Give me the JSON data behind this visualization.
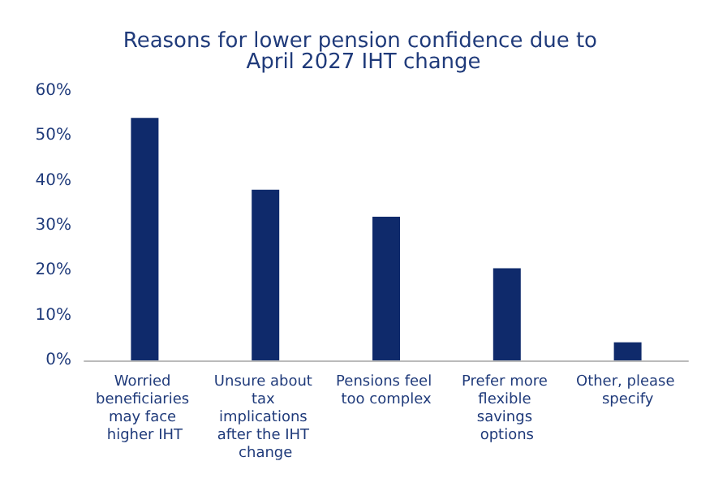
{
  "chart_data": {
    "type": "bar",
    "title": "Reasons for lower pension confidence due to April 2027 IHT change",
    "categories": [
      "Worried beneficiaries may face higher IHT",
      "Unsure about tax implications after the IHT change",
      "Pensions feel too complex",
      "Prefer more flexible savings options",
      "Other, please specify"
    ],
    "values": [
      54,
      38,
      32,
      20.5,
      4
    ],
    "color": "#0f2a6b",
    "ylim": [
      0,
      60
    ],
    "yticks": [
      {
        "value": 0,
        "label": "0%"
      },
      {
        "value": 10,
        "label": "10%"
      },
      {
        "value": 20,
        "label": "20%"
      },
      {
        "value": 30,
        "label": "30%"
      },
      {
        "value": 40,
        "label": "40%"
      },
      {
        "value": 50,
        "label": "50%"
      },
      {
        "value": 60,
        "label": "60%"
      }
    ],
    "grid": false
  }
}
